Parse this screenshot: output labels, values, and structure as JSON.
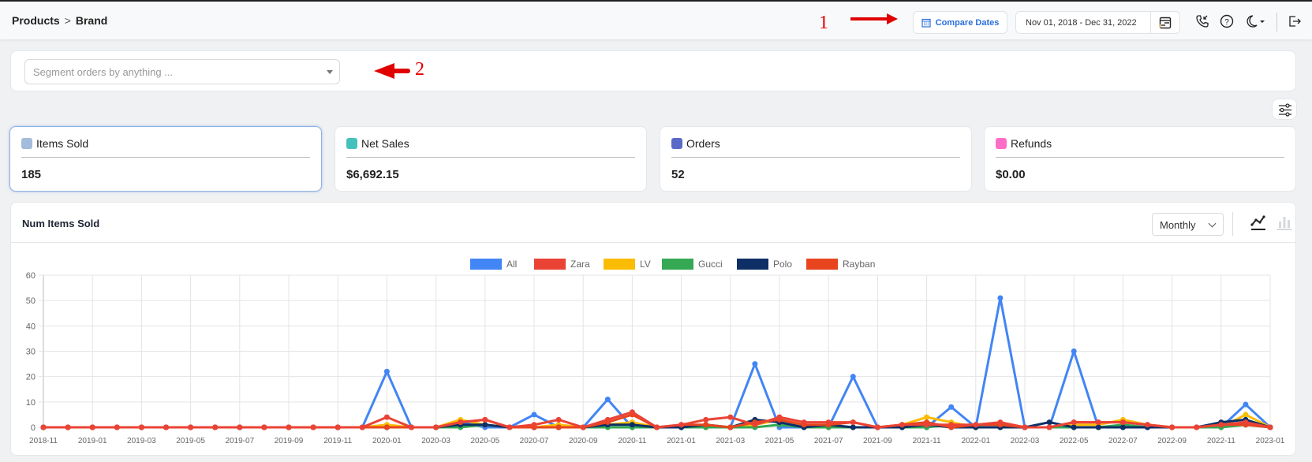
{
  "breadcrumb": {
    "items": [
      "Products",
      "Brand"
    ],
    "separator": ">"
  },
  "annotations": {
    "one": "1",
    "two": "2"
  },
  "toolbar": {
    "compare_dates_label": "Compare Dates",
    "date_range": "Nov 01, 2018 - Dec 31, 2022",
    "icons": [
      "calendar-icon",
      "phone-incoming-icon",
      "help-icon",
      "moon-icon",
      "logout-icon"
    ]
  },
  "segment": {
    "placeholder": "Segment orders by anything ..."
  },
  "kpis": [
    {
      "label": "Items Sold",
      "value": "185",
      "color": "#a3bcdc",
      "selected": true
    },
    {
      "label": "Net Sales",
      "value": "$6,692.15",
      "color": "#45c1bd",
      "selected": false
    },
    {
      "label": "Orders",
      "value": "52",
      "color": "#5b6ac8",
      "selected": false
    },
    {
      "label": "Refunds",
      "value": "$0.00",
      "color": "#ff6dc6",
      "selected": false
    }
  ],
  "chart_panel": {
    "title": "Num Items Sold",
    "interval": "Monthly",
    "view_modes": [
      "line",
      "bar"
    ],
    "active_view": "line"
  },
  "chart_data": {
    "type": "line",
    "title": "Num Items Sold",
    "xlabel": "",
    "ylabel": "",
    "ylim": [
      0,
      60
    ],
    "yticks": [
      0,
      10,
      20,
      30,
      40,
      50,
      60
    ],
    "grid": true,
    "legend_position": "top",
    "x": [
      "2018-11",
      "2018-12",
      "2019-01",
      "2019-02",
      "2019-03",
      "2019-04",
      "2019-05",
      "2019-06",
      "2019-07",
      "2019-08",
      "2019-09",
      "2019-10",
      "2019-11",
      "2019-12",
      "2020-01",
      "2020-02",
      "2020-03",
      "2020-04",
      "2020-05",
      "2020-06",
      "2020-07",
      "2020-08",
      "2020-09",
      "2020-10",
      "2020-11",
      "2020-12",
      "2021-01",
      "2021-02",
      "2021-03",
      "2021-04",
      "2021-05",
      "2021-06",
      "2021-07",
      "2021-08",
      "2021-09",
      "2021-10",
      "2021-11",
      "2021-12",
      "2022-01",
      "2022-02",
      "2022-03",
      "2022-04",
      "2022-05",
      "2022-06",
      "2022-07",
      "2022-08",
      "2022-09",
      "2022-10",
      "2022-11",
      "2022-12",
      "2023-01"
    ],
    "xtick_labels": [
      "2018-11",
      "2019-01",
      "2019-03",
      "2019-05",
      "2019-07",
      "2019-09",
      "2019-11",
      "2020-01",
      "2020-03",
      "2020-05",
      "2020-07",
      "2020-09",
      "2020-11",
      "2021-01",
      "2021-03",
      "2021-05",
      "2021-07",
      "2021-09",
      "2021-11",
      "2022-01",
      "2022-03",
      "2022-05",
      "2022-07",
      "2022-09",
      "2022-11",
      "2023-01"
    ],
    "series": [
      {
        "name": "All",
        "color": "#4285f4",
        "values": [
          0,
          0,
          0,
          0,
          0,
          0,
          0,
          0,
          0,
          0,
          0,
          0,
          0,
          0,
          22,
          0,
          0,
          2,
          0,
          0,
          5,
          0,
          0,
          11,
          0,
          0,
          0,
          0,
          0,
          25,
          0,
          0,
          0,
          20,
          0,
          0,
          0,
          8,
          0,
          51,
          0,
          0,
          30,
          0,
          0,
          0,
          0,
          0,
          0,
          9,
          0
        ]
      },
      {
        "name": "Zara",
        "color": "#ea4335",
        "values": [
          0,
          0,
          0,
          0,
          0,
          0,
          0,
          0,
          0,
          0,
          0,
          0,
          0,
          0,
          4,
          0,
          0,
          2,
          3,
          0,
          1,
          3,
          0,
          3,
          6,
          0,
          1,
          3,
          4,
          1,
          4,
          2,
          2,
          2,
          0,
          1,
          1,
          1,
          1,
          2,
          0,
          0,
          2,
          2,
          2,
          1,
          0,
          0,
          1,
          2,
          0
        ]
      },
      {
        "name": "LV",
        "color": "#fbbc04",
        "values": [
          0,
          0,
          0,
          0,
          0,
          0,
          0,
          0,
          0,
          0,
          0,
          0,
          0,
          0,
          1,
          0,
          0,
          3,
          1,
          0,
          0,
          1,
          0,
          1,
          2,
          0,
          0,
          0,
          0,
          1,
          3,
          1,
          0,
          0,
          0,
          1,
          4,
          2,
          0,
          0,
          0,
          0,
          1,
          1,
          3,
          1,
          0,
          0,
          0,
          5,
          0
        ]
      },
      {
        "name": "Gucci",
        "color": "#34a853",
        "values": [
          0,
          0,
          0,
          0,
          0,
          0,
          0,
          0,
          0,
          0,
          0,
          0,
          0,
          0,
          0,
          0,
          0,
          0,
          1,
          0,
          0,
          0,
          0,
          0,
          0,
          0,
          0,
          0,
          0,
          0,
          1,
          0,
          0,
          0,
          0,
          0,
          0,
          1,
          0,
          0,
          0,
          0,
          0,
          0,
          1,
          0,
          0,
          0,
          0,
          1,
          0
        ]
      },
      {
        "name": "Polo",
        "color": "#0d2f66",
        "values": [
          0,
          0,
          0,
          0,
          0,
          0,
          0,
          0,
          0,
          0,
          0,
          0,
          0,
          0,
          0,
          0,
          0,
          1,
          1,
          0,
          0,
          0,
          0,
          1,
          1,
          0,
          0,
          1,
          0,
          3,
          2,
          0,
          1,
          0,
          0,
          0,
          1,
          0,
          0,
          0,
          0,
          2,
          0,
          0,
          0,
          0,
          0,
          0,
          2,
          3,
          0
        ]
      },
      {
        "name": "Rayban",
        "color": "#e8451f",
        "values": [
          0,
          0,
          0,
          0,
          0,
          0,
          0,
          0,
          0,
          0,
          0,
          0,
          0,
          0,
          0,
          0,
          0,
          2,
          3,
          0,
          0,
          0,
          0,
          2,
          5,
          0,
          1,
          1,
          0,
          2,
          3,
          1,
          1,
          2,
          0,
          1,
          2,
          0,
          1,
          1,
          0,
          0,
          2,
          2,
          2,
          1,
          0,
          0,
          1,
          1,
          0
        ]
      }
    ]
  }
}
